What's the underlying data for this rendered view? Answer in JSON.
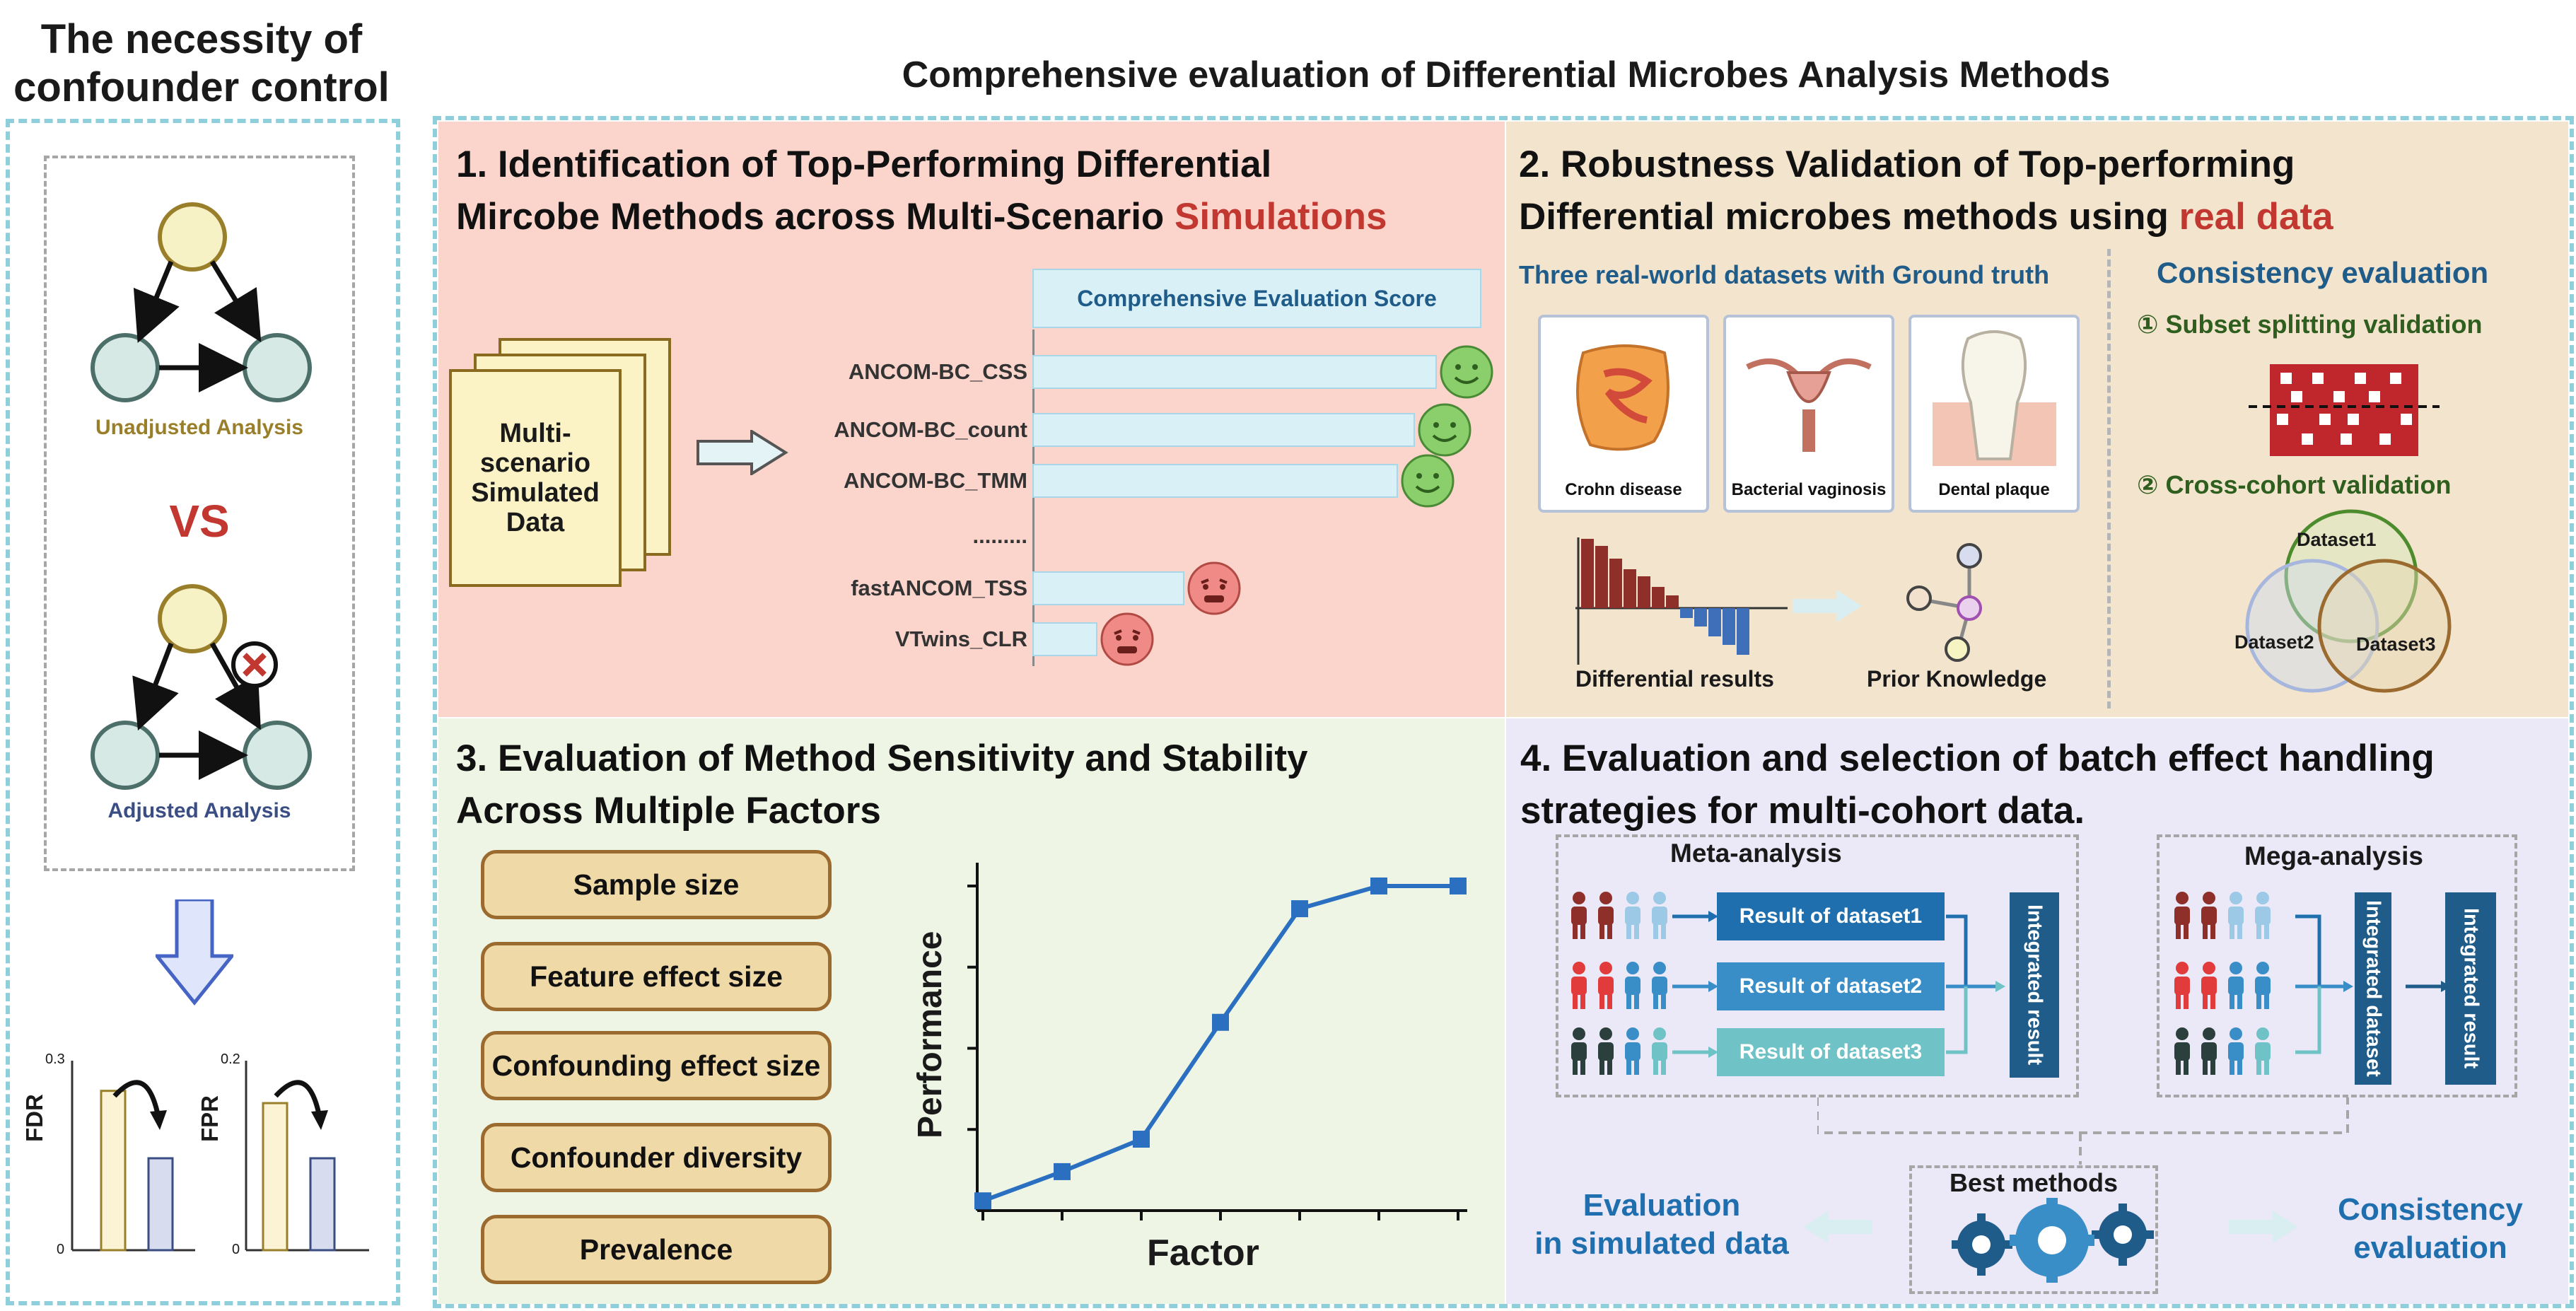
{
  "left": {
    "title_line1": "The necessity of",
    "title_line2": "confounder control",
    "unadjusted_label": "Unadjusted Analysis",
    "vs": "VS",
    "adjusted_label": "Adjusted Analysis",
    "fdr_chart": {
      "ylabel": "FDR",
      "ytop": "0.3",
      "ybottom": "0",
      "values": [
        0.26,
        0.15
      ],
      "ymax": 0.3
    },
    "fpr_chart": {
      "ylabel": "FPR",
      "ytop": "0.2",
      "ybottom": "0",
      "values": [
        0.16,
        0.1
      ],
      "ymax": 0.2
    }
  },
  "header": {
    "title": "Comprehensive evaluation of Differential Microbes Analysis Methods"
  },
  "panel1": {
    "title_line1": "1. Identification of Top-Performing Differential",
    "title_line2_plain": "Mircobe Methods across Multi-Scenario ",
    "title_line2_red": "Simulations",
    "data_label": "Multi-\nscenario\nSimulated\nData",
    "score_title": "Comprehensive Evaluation Score",
    "methods": [
      {
        "name": "ANCOM-BC_CSS",
        "score": 0.93,
        "face": "happy"
      },
      {
        "name": "ANCOM-BC_count",
        "score": 0.88,
        "face": "happy"
      },
      {
        "name": "ANCOM-BC_TMM",
        "score": 0.84,
        "face": "happy"
      },
      {
        "name": ".........",
        "score": null,
        "face": ""
      },
      {
        "name": "fastANCOM_TSS",
        "score": 0.35,
        "face": "sad"
      },
      {
        "name": "VTwins_CLR",
        "score": 0.15,
        "face": "sad"
      }
    ]
  },
  "panel2": {
    "title_line1": "2. Robustness Validation of Top-performing",
    "title_line2_plain": "Differential microbes methods using ",
    "title_line2_red": "real data",
    "datasets_title": "Three real-world datasets with Ground truth",
    "datasets": [
      "Crohn disease",
      "Bacterial vaginosis",
      "Dental plaque"
    ],
    "diff_label": "Differential results",
    "prior_label": "Prior Knowledge",
    "consistency_title": "Consistency evaluation",
    "subset_label": "① Subset splitting validation",
    "cross_label": "② Cross-cohort validation",
    "venn": [
      "Dataset1",
      "Dataset2",
      "Dataset3"
    ]
  },
  "panel3": {
    "title_line1": "3. Evaluation of Method Sensitivity and Stability",
    "title_line2": "Across Multiple Factors",
    "factors": [
      "Sample size",
      "Feature effect size",
      "Confounding effect size",
      "Confounder diversity",
      "Prevalence"
    ],
    "chart_data": {
      "type": "line",
      "xlabel": "Factor",
      "ylabel": "Performance",
      "x": [
        1,
        2,
        3,
        4,
        5,
        6,
        7
      ],
      "series": [
        {
          "values": [
            0.03,
            0.12,
            0.22,
            0.58,
            0.93,
            1.0,
            1.0
          ]
        }
      ],
      "ylim": [
        0,
        1.05
      ]
    }
  },
  "panel4": {
    "title_line1": "4. Evaluation and selection of batch effect handling",
    "title_line2": "strategies for multi-cohort data.",
    "meta_title": "Meta-analysis",
    "mega_title": "Mega-analysis",
    "results": [
      "Result of dataset1",
      "Result of dataset2",
      "Result of dataset3"
    ],
    "integrated_result": "Integrated result",
    "integrated_dataset": "Integrated dataset",
    "best_methods": "Best methods",
    "eval_sim_line1": "Evaluation",
    "eval_sim_line2": "in simulated data",
    "consistency_line1": "Consistency",
    "consistency_line2": "evaluation"
  },
  "colors": {
    "panel1_bg": "#fbd5cc",
    "panel2_bg": "#f3e4cd",
    "panel3_bg": "#eef5e4",
    "panel4_bg": "#ebe8f7",
    "accent_red": "#c2372f",
    "navy": "#1f5c8a",
    "green_text": "#2f5f1e"
  }
}
